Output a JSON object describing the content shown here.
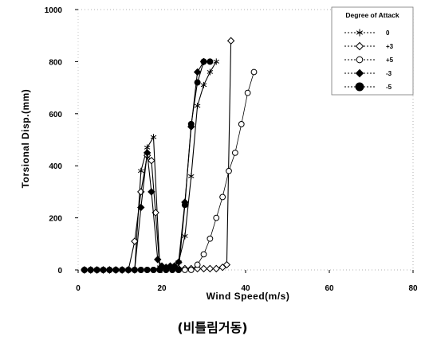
{
  "chart_data": {
    "type": "line",
    "xlabel": "Wind Speed(m/s)",
    "ylabel": "Torsional Disp.(mm)",
    "xlim": [
      0,
      80
    ],
    "ylim": [
      0,
      1000
    ],
    "x_ticks": [
      0,
      20,
      40,
      60,
      80
    ],
    "y_ticks": [
      0,
      200,
      400,
      600,
      800,
      1000
    ],
    "grid": false,
    "legend_title": "Degree of Attack",
    "legend_position": "top-right",
    "series": [
      {
        "name": "0",
        "marker": "asterisk",
        "color": "#000000",
        "points": [
          [
            1.5,
            0
          ],
          [
            3,
            0
          ],
          [
            4.5,
            0
          ],
          [
            6,
            0
          ],
          [
            7.5,
            0
          ],
          [
            9,
            0
          ],
          [
            10.5,
            0
          ],
          [
            12,
            0
          ],
          [
            13.5,
            0
          ],
          [
            15,
            380
          ],
          [
            16.5,
            470
          ],
          [
            18,
            510
          ],
          [
            19.5,
            10
          ],
          [
            21,
            10
          ],
          [
            22.5,
            10
          ],
          [
            24,
            30
          ],
          [
            25.5,
            130
          ],
          [
            27,
            360
          ],
          [
            28.5,
            630
          ],
          [
            30,
            710
          ],
          [
            31.5,
            760
          ],
          [
            33,
            800
          ]
        ]
      },
      {
        "name": "+3",
        "marker": "diamond-open",
        "color": "#000000",
        "points": [
          [
            1.5,
            0
          ],
          [
            3,
            0
          ],
          [
            4.5,
            0
          ],
          [
            6,
            0
          ],
          [
            7.5,
            0
          ],
          [
            9,
            0
          ],
          [
            10.5,
            0
          ],
          [
            12,
            0
          ],
          [
            13.5,
            110
          ],
          [
            15,
            300
          ],
          [
            16.5,
            440
          ],
          [
            17.5,
            420
          ],
          [
            18.5,
            220
          ],
          [
            19.5,
            5
          ],
          [
            21,
            5
          ],
          [
            22.5,
            5
          ],
          [
            24,
            5
          ],
          [
            25.5,
            5
          ],
          [
            27,
            5
          ],
          [
            28.5,
            5
          ],
          [
            30,
            5
          ],
          [
            31.5,
            5
          ],
          [
            33,
            5
          ],
          [
            34.5,
            10
          ],
          [
            35.5,
            20
          ],
          [
            36.5,
            880
          ]
        ]
      },
      {
        "name": "+5",
        "marker": "circle-open",
        "color": "#000000",
        "points": [
          [
            1.5,
            0
          ],
          [
            3,
            0
          ],
          [
            4.5,
            0
          ],
          [
            6,
            0
          ],
          [
            7.5,
            0
          ],
          [
            9,
            0
          ],
          [
            10.5,
            0
          ],
          [
            12,
            0
          ],
          [
            13.5,
            0
          ],
          [
            15,
            0
          ],
          [
            16.5,
            0
          ],
          [
            18,
            0
          ],
          [
            19.5,
            0
          ],
          [
            21,
            0
          ],
          [
            22.5,
            0
          ],
          [
            24,
            0
          ],
          [
            25.5,
            0
          ],
          [
            27,
            0
          ],
          [
            28.5,
            20
          ],
          [
            30,
            60
          ],
          [
            31.5,
            120
          ],
          [
            33,
            200
          ],
          [
            34.5,
            280
          ],
          [
            36,
            380
          ],
          [
            37.5,
            450
          ],
          [
            39,
            560
          ],
          [
            40.5,
            680
          ],
          [
            42,
            760
          ]
        ]
      },
      {
        "name": "-3",
        "marker": "diamond-filled",
        "color": "#000000",
        "points": [
          [
            1.5,
            0
          ],
          [
            3,
            0
          ],
          [
            4.5,
            0
          ],
          [
            6,
            0
          ],
          [
            7.5,
            0
          ],
          [
            9,
            0
          ],
          [
            10.5,
            0
          ],
          [
            12,
            0
          ],
          [
            13.5,
            0
          ],
          [
            15,
            240
          ],
          [
            16.5,
            450
          ],
          [
            17.5,
            300
          ],
          [
            19,
            40
          ],
          [
            20,
            15
          ],
          [
            21,
            10
          ],
          [
            22,
            15
          ],
          [
            23,
            15
          ],
          [
            24,
            30
          ],
          [
            25.5,
            260
          ],
          [
            27,
            550
          ],
          [
            28.5,
            760
          ],
          [
            30,
            800
          ]
        ]
      },
      {
        "name": "-5",
        "marker": "circle-filled",
        "color": "#000000",
        "points": [
          [
            1.5,
            0
          ],
          [
            3,
            0
          ],
          [
            4.5,
            0
          ],
          [
            6,
            0
          ],
          [
            7.5,
            0
          ],
          [
            9,
            0
          ],
          [
            10.5,
            0
          ],
          [
            12,
            0
          ],
          [
            13.5,
            0
          ],
          [
            15,
            0
          ],
          [
            16.5,
            0
          ],
          [
            18,
            0
          ],
          [
            19.5,
            0
          ],
          [
            21,
            0
          ],
          [
            22.5,
            0
          ],
          [
            24,
            0
          ],
          [
            25.5,
            250
          ],
          [
            27,
            560
          ],
          [
            28.5,
            720
          ],
          [
            30,
            800
          ],
          [
            31.5,
            800
          ]
        ]
      }
    ]
  },
  "caption": "(비틀림거동)"
}
